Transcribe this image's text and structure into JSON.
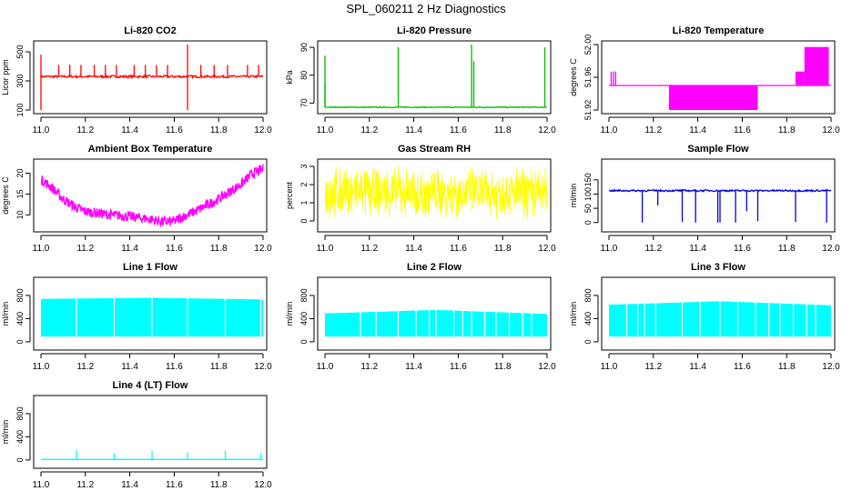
{
  "figure": {
    "title": "SPL_060211  2 Hz Diagnostics"
  },
  "chart_data": [
    {
      "type": "line",
      "title": "Li-820 CO2",
      "xlabel": "",
      "ylabel": "Licor ppm",
      "xlim": [
        11.0,
        12.0
      ],
      "ylim": [
        100,
        550
      ],
      "yticks": [
        "100",
        "300",
        "500"
      ],
      "ytickvals": [
        100,
        300,
        500
      ],
      "xticks": [
        "11.0",
        "11.2",
        "11.4",
        "11.6",
        "11.8",
        "12.0"
      ],
      "color": "#ff0000",
      "series": {
        "baseline": 330,
        "noise": 8,
        "spikes": [
          [
            11.0,
            480
          ],
          [
            11.0,
            100
          ],
          [
            11.08,
            410
          ],
          [
            11.13,
            410
          ],
          [
            11.18,
            410
          ],
          [
            11.24,
            410
          ],
          [
            11.29,
            410
          ],
          [
            11.34,
            410
          ],
          [
            11.42,
            410
          ],
          [
            11.47,
            410
          ],
          [
            11.52,
            410
          ],
          [
            11.57,
            410
          ],
          [
            11.66,
            550
          ],
          [
            11.66,
            100
          ],
          [
            11.72,
            410
          ],
          [
            11.78,
            410
          ],
          [
            11.84,
            410
          ],
          [
            11.93,
            410
          ],
          [
            11.98,
            410
          ]
        ]
      }
    },
    {
      "type": "line",
      "title": "Li-820 Pressure",
      "xlabel": "",
      "ylabel": "kPa",
      "xlim": [
        11.0,
        12.0
      ],
      "ylim": [
        67.5,
        91
      ],
      "yticks": [
        "70",
        "80",
        "90"
      ],
      "ytickvals": [
        70,
        80,
        90
      ],
      "xticks": [
        "11.0",
        "11.2",
        "11.4",
        "11.6",
        "11.8",
        "12.0"
      ],
      "color": "#00bb00",
      "series": {
        "baseline": 68.5,
        "noise": 0.15,
        "spikes": [
          [
            11.0,
            87
          ],
          [
            11.0,
            77
          ],
          [
            11.33,
            90
          ],
          [
            11.66,
            91
          ],
          [
            11.67,
            85
          ],
          [
            11.99,
            90
          ]
        ]
      }
    },
    {
      "type": "line",
      "title": "Li-820 Temperature",
      "xlabel": "",
      "ylabel": "degrees C",
      "xlim": [
        11.0,
        12.0
      ],
      "ylim": [
        51.92,
        52.0
      ],
      "yticks": [
        "51.92",
        "51.96",
        "52.00"
      ],
      "ytickvals": [
        51.92,
        51.96,
        52.0
      ],
      "xticks": [
        "11.0",
        "11.2",
        "11.4",
        "11.6",
        "11.8",
        "12.0"
      ],
      "color": "#ff00ff",
      "series": {
        "baseline": 51.95,
        "blocks": [
          [
            11.27,
            11.67,
            51.92,
            51.95
          ],
          [
            11.84,
            11.88,
            51.95,
            51.967
          ],
          [
            11.88,
            11.99,
            51.95,
            51.997
          ]
        ],
        "spikes": [
          [
            11.01,
            51.967
          ],
          [
            11.02,
            51.967
          ],
          [
            11.03,
            51.967
          ]
        ]
      }
    },
    {
      "type": "line",
      "title": "Ambient Box Temperature",
      "xlabel": "",
      "ylabel": "degrees C",
      "xlim": [
        11.0,
        12.0
      ],
      "ylim": [
        6.8,
        22.5
      ],
      "yticks": [
        "10",
        "15",
        "20"
      ],
      "ytickvals": [
        10,
        15,
        20
      ],
      "xticks": [
        "11.0",
        "11.2",
        "11.4",
        "11.6",
        "11.8",
        "12.0"
      ],
      "color": "#ff00ff",
      "series": {
        "x": [
          11.0,
          11.05,
          11.1,
          11.15,
          11.2,
          11.3,
          11.4,
          11.5,
          11.55,
          11.6,
          11.65,
          11.7,
          11.8,
          11.9,
          11.95,
          12.0
        ],
        "y": [
          18.5,
          16.5,
          13.8,
          12.0,
          10.8,
          10.1,
          9.6,
          8.9,
          8.3,
          8.5,
          9.8,
          11.0,
          13.8,
          17.3,
          19.8,
          21.0
        ],
        "band": 1.2
      }
    },
    {
      "type": "line",
      "title": "Gas Stream RH",
      "xlabel": "",
      "ylabel": "percent",
      "xlim": [
        11.0,
        12.0
      ],
      "ylim": [
        -0.4,
        3.2
      ],
      "yticks": [
        "0",
        "1",
        "2",
        "3"
      ],
      "ytickvals": [
        0,
        1,
        2,
        3
      ],
      "xticks": [
        "11.0",
        "11.2",
        "11.4",
        "11.6",
        "11.8",
        "12.0"
      ],
      "color": "#ffff00",
      "series": {
        "upper": 2.6,
        "lower": 0.5,
        "noise": 0.5
      }
    },
    {
      "type": "line",
      "title": "Sample Flow",
      "xlabel": "",
      "ylabel": "ml/min",
      "xlim": [
        11.0,
        12.0
      ],
      "ylim": [
        -20,
        210
      ],
      "yticks": [
        "0",
        "50",
        "100",
        "150"
      ],
      "ytickvals": [
        0,
        50,
        100,
        150
      ],
      "xticks": [
        "11.0",
        "11.2",
        "11.4",
        "11.6",
        "11.8",
        "12.0"
      ],
      "color": "#0000dd",
      "series": {
        "baseline": 112,
        "noise": 3,
        "spikes": [
          [
            11.15,
            0
          ],
          [
            11.22,
            60
          ],
          [
            11.33,
            2
          ],
          [
            11.39,
            0
          ],
          [
            11.49,
            0
          ],
          [
            11.5,
            0
          ],
          [
            11.57,
            0
          ],
          [
            11.62,
            40
          ],
          [
            11.67,
            5
          ],
          [
            11.84,
            2
          ],
          [
            11.98,
            0
          ]
        ]
      }
    },
    {
      "type": "area",
      "title": "Line 1 Flow",
      "xlabel": "",
      "ylabel": "ml/min",
      "xlim": [
        11.0,
        12.0
      ],
      "ylim": [
        -80,
        1050
      ],
      "yticks": [
        "0",
        "400",
        "800"
      ],
      "ytickvals": [
        0,
        400,
        800
      ],
      "xticks": [
        "11.0",
        "11.2",
        "11.4",
        "11.6",
        "11.8",
        "12.0"
      ],
      "color": "#00ffff",
      "series": {
        "lower": 90,
        "upper_x": [
          11.0,
          11.5,
          12.0
        ],
        "upper_y": [
          740,
          760,
          730
        ],
        "gaps": [
          11.16,
          11.33,
          11.5,
          11.66,
          11.83,
          11.99
        ]
      }
    },
    {
      "type": "area",
      "title": "Line 2 Flow",
      "xlabel": "",
      "ylabel": "ml/min",
      "xlim": [
        11.0,
        12.0
      ],
      "ylim": [
        -80,
        1050
      ],
      "yticks": [
        "0",
        "400",
        "800"
      ],
      "ytickvals": [
        0,
        400,
        800
      ],
      "xticks": [
        "11.0",
        "11.2",
        "11.4",
        "11.6",
        "11.8",
        "12.0"
      ],
      "color": "#00ffff",
      "series": {
        "lower": 90,
        "upper_x": [
          11.0,
          11.5,
          12.0
        ],
        "upper_y": [
          490,
          550,
          480
        ],
        "gaps": [
          11.16,
          11.23,
          11.33,
          11.41,
          11.47,
          11.5,
          11.58,
          11.62,
          11.66,
          11.72,
          11.77,
          11.83,
          11.89,
          11.93
        ]
      }
    },
    {
      "type": "area",
      "title": "Line 3 Flow",
      "xlabel": "",
      "ylabel": "ml/min",
      "xlim": [
        11.0,
        12.0
      ],
      "ylim": [
        -80,
        1050
      ],
      "yticks": [
        "0",
        "400",
        "800"
      ],
      "ytickvals": [
        0,
        400,
        800
      ],
      "xticks": [
        "11.0",
        "11.2",
        "11.4",
        "11.6",
        "11.8",
        "12.0"
      ],
      "color": "#00ffff",
      "series": {
        "lower": 90,
        "upper_x": [
          11.0,
          11.5,
          12.0
        ],
        "upper_y": [
          640,
          700,
          630
        ],
        "gaps": [
          11.08,
          11.13,
          11.16,
          11.21,
          11.33,
          11.41,
          11.5,
          11.58,
          11.66,
          11.72,
          11.77,
          11.83,
          11.89,
          11.93
        ]
      }
    },
    {
      "type": "line",
      "title": "Line 4 (LT) Flow",
      "xlabel": "",
      "ylabel": "ml/min",
      "xlim": [
        11.0,
        12.0
      ],
      "ylim": [
        -80,
        1050
      ],
      "yticks": [
        "0",
        "400",
        "800"
      ],
      "ytickvals": [
        0,
        400,
        800
      ],
      "xticks": [
        "11.0",
        "11.2",
        "11.4",
        "11.6",
        "11.8",
        "12.0"
      ],
      "color": "#00ffff",
      "series": {
        "baseline": 10,
        "noise": 0,
        "spikes": [
          [
            11.16,
            170
          ],
          [
            11.33,
            110
          ],
          [
            11.5,
            160
          ],
          [
            11.66,
            130
          ],
          [
            11.83,
            160
          ],
          [
            11.99,
            110
          ]
        ]
      }
    }
  ]
}
